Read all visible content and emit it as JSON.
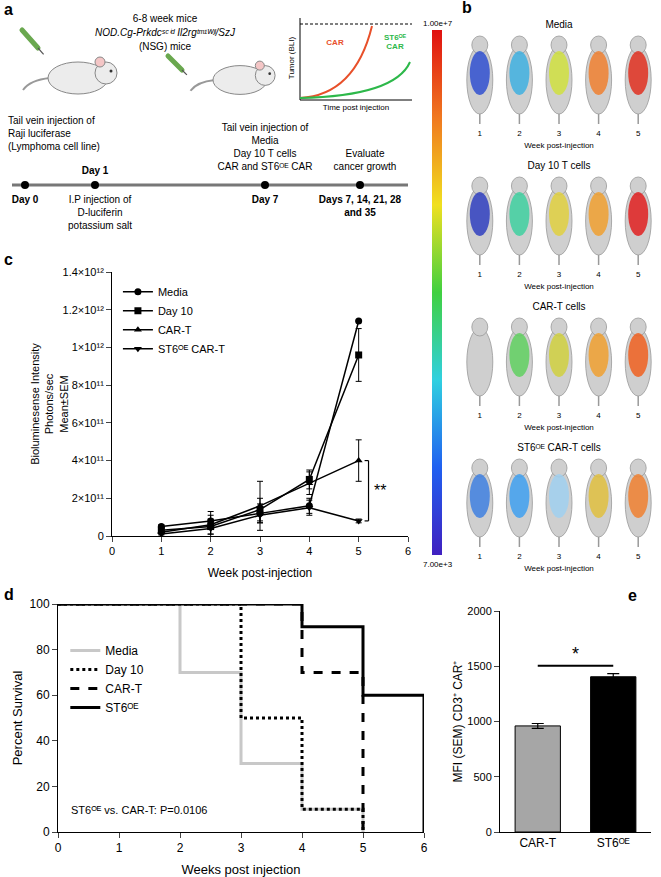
{
  "schematic": {
    "panel": "a",
    "mice_text": [
      "6-8 week mice",
      "NOD.Cg-Prkdcˢᶜⁱᵈ Il2rgᵗᵐ¹ᵂʲˡ/SzJ",
      "(NSG) mice"
    ],
    "inset": {
      "ylabel": "Tumor (BLI)",
      "xlabel": "Time post injection",
      "curves": [
        {
          "name": "CAR",
          "color": "#e8502a"
        },
        {
          "name": "ST6ᴼᴱ CAR",
          "color": "#2db84a"
        }
      ]
    },
    "timeline": [
      {
        "below": [
          "Day 0"
        ],
        "above": [
          "Tail vein injection of",
          "Raji luciferase",
          "(Lymphoma cell line)"
        ]
      },
      {
        "above": [
          "Day 1"
        ],
        "below": [
          "I.P injection of",
          "D-luciferin",
          "potassium salt"
        ]
      },
      {
        "below": [
          "Day 7"
        ],
        "above": [
          "Tail vein injection of",
          "Media",
          "Day 10 T cells",
          "CAR and ST6ᴼᴱ CAR"
        ]
      },
      {
        "below": [
          "Days 7, 14, 21, 28",
          "and 35"
        ],
        "above": [
          "Evaluate",
          "cancer growth"
        ]
      }
    ]
  },
  "imaging": {
    "panel": "b",
    "colorbar": {
      "max_label": "1.00e+7",
      "min_label": "7.00e+3"
    },
    "groups": [
      {
        "title": "Media",
        "columns": [
          "1",
          "2",
          "3",
          "4",
          "5"
        ],
        "xlabel": "Week post-injection"
      },
      {
        "title": "Day 10 T cells",
        "columns": [
          "1",
          "2",
          "3",
          "4",
          "5"
        ],
        "xlabel": "Week post-injection"
      },
      {
        "title": "CAR-T cells",
        "columns": [
          "1",
          "2",
          "3",
          "4",
          "5"
        ],
        "xlabel": "Week post-injection"
      },
      {
        "title": "ST6ᴼᴱ CAR-T cells",
        "columns": [
          "1",
          "2",
          "3",
          "4",
          "5"
        ],
        "xlabel": "Week post-injection"
      }
    ]
  },
  "chart_data": [
    {
      "panel": "c",
      "type": "line",
      "x": [
        1,
        2,
        3,
        4,
        5
      ],
      "xlabel": "Week post-injection",
      "ylabel": [
        "Bioluminesense Intensity",
        "Photons/sec",
        "Mean±SEM"
      ],
      "xlim": [
        0,
        6
      ],
      "xticks": [
        0,
        1,
        2,
        3,
        4,
        5,
        6
      ],
      "ylim": [
        0,
        1400000000000
      ],
      "yticks": [
        0,
        {
          "value": 200000000000,
          "label": "2×10¹¹"
        },
        {
          "value": 400000000000,
          "label": "4×10¹¹"
        },
        {
          "value": 600000000000,
          "label": "6×10¹¹"
        },
        {
          "value": 800000000000,
          "label": "8×10¹¹"
        },
        {
          "value": 1000000000000,
          "label": "1×10¹²"
        },
        {
          "value": 1200000000000,
          "label": "1.2×10¹²"
        },
        {
          "value": 1400000000000,
          "label": "1.4×10¹²"
        }
      ],
      "grid": false,
      "legend": "upper left",
      "series": [
        {
          "name": "Media",
          "color": "#000000",
          "marker": "circle",
          "values": [
            50000000000,
            80000000000,
            120000000000,
            160000000000,
            1140000000000
          ],
          "error": [
            10000000000,
            30000000000,
            50000000000,
            40000000000,
            0
          ]
        },
        {
          "name": "Day 10",
          "color": "#000000",
          "marker": "square",
          "values": [
            30000000000,
            50000000000,
            140000000000,
            300000000000,
            960000000000
          ],
          "error": [
            20000000000,
            40000000000,
            60000000000,
            50000000000,
            140000000000
          ]
        },
        {
          "name": "CAR-T",
          "color": "#000000",
          "marker": "triangle-up",
          "values": [
            20000000000,
            60000000000,
            160000000000,
            280000000000,
            400000000000
          ],
          "error": [
            10000000000,
            70000000000,
            130000000000,
            60000000000,
            110000000000
          ]
        },
        {
          "name": "ST6ᴼᴱ CAR-T",
          "color": "#000000",
          "marker": "triangle-down",
          "values": [
            10000000000,
            40000000000,
            110000000000,
            150000000000,
            80000000000
          ],
          "error": [
            10000000000,
            30000000000,
            40000000000,
            40000000000,
            10000000000
          ]
        }
      ],
      "annotations": [
        {
          "text": "**",
          "x": 5,
          "series": [
            "CAR-T",
            "ST6ᴼᴱ CAR-T"
          ]
        }
      ]
    },
    {
      "panel": "d",
      "type": "step",
      "x": [
        0,
        1,
        2,
        3,
        4,
        5,
        6
      ],
      "xlabel": "Weeks post injection",
      "ylabel": "Percent Survival",
      "xlim": [
        0,
        6
      ],
      "xticks": [
        0,
        1,
        2,
        3,
        4,
        5,
        6
      ],
      "ylim": [
        0,
        100
      ],
      "yticks": [
        0,
        20,
        40,
        60,
        80,
        100
      ],
      "grid": false,
      "legend": "upper left",
      "series": [
        {
          "name": "Media",
          "color": "#c8c8c8",
          "line_style": "solid",
          "values": [
            100,
            100,
            70,
            30,
            10,
            0,
            null
          ]
        },
        {
          "name": "Day 10",
          "color": "#000000",
          "line_style": "dot",
          "values": [
            100,
            100,
            100,
            50,
            10,
            0,
            null
          ]
        },
        {
          "name": "CAR-T",
          "color": "#000000",
          "line_style": "dash",
          "values": [
            100,
            100,
            100,
            100,
            70,
            0,
            null
          ]
        },
        {
          "name": "ST6ᴼᴱ",
          "color": "#000000",
          "line_style": "solid",
          "values": [
            100,
            100,
            100,
            100,
            90,
            60,
            0
          ]
        }
      ],
      "annotations": [
        {
          "text": "ST6ᴼᴱ vs. CAR-T: P=0.0106"
        }
      ]
    },
    {
      "panel": "e",
      "type": "bar",
      "categories": [
        "CAR-T",
        "ST6ᴼᴱ"
      ],
      "values": [
        960,
        1405
      ],
      "error": [
        22,
        28
      ],
      "colors": [
        "#a6a6a6",
        "#000000"
      ],
      "ylabel": "MFI (SEM) CD3⁺ CAR⁺",
      "ylim": [
        0,
        2000
      ],
      "yticks": [
        0,
        500,
        1000,
        1500,
        2000
      ],
      "grid": false,
      "annotations": [
        {
          "text": "*",
          "between": [
            "CAR-T",
            "ST6ᴼᴱ"
          ]
        }
      ]
    }
  ]
}
